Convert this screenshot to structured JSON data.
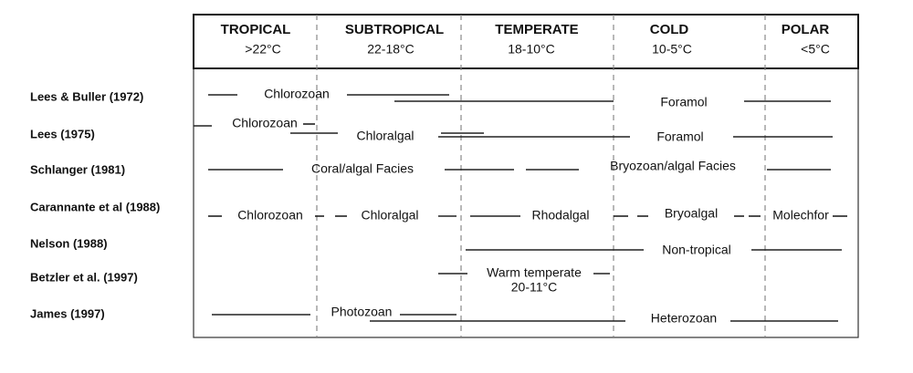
{
  "header": {
    "zones": [
      {
        "name": "TROPICAL",
        "range": ">22°C"
      },
      {
        "name": "SUBTROPICAL",
        "range": "22-18°C"
      },
      {
        "name": "TEMPERATE",
        "range": "18-10°C"
      },
      {
        "name": "COLD",
        "range": "10-5°C"
      },
      {
        "name": "POLAR",
        "range": "<5°C"
      }
    ]
  },
  "rows": [
    {
      "author": "Lees & Buller (1972)",
      "labels": [
        "Chlorozoan",
        "Foramol"
      ]
    },
    {
      "author": "Lees (1975)",
      "labels": [
        "Chlorozoan",
        "Chloralgal",
        "Foramol"
      ]
    },
    {
      "author": "Schlanger (1981)",
      "labels": [
        "Coral/algal Facies",
        "Bryozoan/algal Facies"
      ]
    },
    {
      "author": "Carannante et al (1988)",
      "labels": [
        "Chlorozoan",
        "Chloralgal",
        "Rhodalgal",
        "Bryoalgal",
        "Molechfor"
      ]
    },
    {
      "author": "Nelson (1988)",
      "labels": [
        "Non-tropical"
      ]
    },
    {
      "author": "Betzler et al. (1997)",
      "labels": [
        "Warm temperate",
        "20-11°C"
      ]
    },
    {
      "author": "James (1997)",
      "labels": [
        "Photozoan",
        "Heterozoan"
      ]
    }
  ]
}
